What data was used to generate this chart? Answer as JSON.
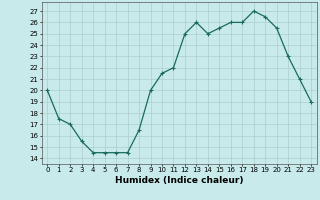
{
  "x": [
    0,
    1,
    2,
    3,
    4,
    5,
    6,
    7,
    8,
    9,
    10,
    11,
    12,
    13,
    14,
    15,
    16,
    17,
    18,
    19,
    20,
    21,
    22,
    23
  ],
  "y": [
    20,
    17.5,
    17,
    15.5,
    14.5,
    14.5,
    14.5,
    14.5,
    16.5,
    20,
    21.5,
    22,
    25,
    26,
    25,
    25.5,
    26,
    26,
    27,
    26.5,
    25.5,
    23,
    21,
    19
  ],
  "line_color": "#1a6b5a",
  "bg_color": "#c8eaea",
  "grid_color": "#aecece",
  "xlabel": "Humidex (Indice chaleur)",
  "ylabel_ticks": [
    14,
    15,
    16,
    17,
    18,
    19,
    20,
    21,
    22,
    23,
    24,
    25,
    26,
    27
  ],
  "ylim": [
    13.5,
    27.8
  ],
  "xlim": [
    -0.5,
    23.5
  ],
  "xtick_labels": [
    "0",
    "1",
    "2",
    "3",
    "4",
    "5",
    "6",
    "7",
    "8",
    "9",
    "10",
    "11",
    "12",
    "13",
    "14",
    "15",
    "16",
    "17",
    "18",
    "19",
    "20",
    "21",
    "22",
    "23"
  ],
  "marker": "+",
  "markersize": 3.5,
  "markeredgewidth": 0.8,
  "linewidth": 0.9,
  "tick_fontsize": 5,
  "xlabel_fontsize": 6.5
}
